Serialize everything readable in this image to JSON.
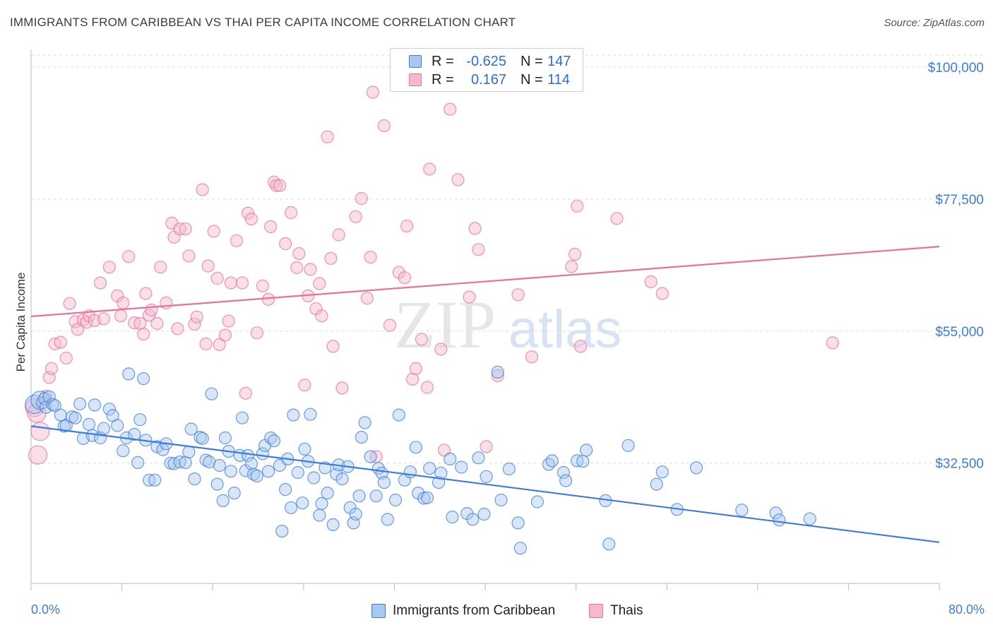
{
  "header": {
    "title": "IMMIGRANTS FROM CARIBBEAN VS THAI PER CAPITA INCOME CORRELATION CHART",
    "source": "Source: ZipAtlas.com"
  },
  "colors": {
    "blue": "#3c7dd9",
    "blue_fill": "#a9c8f0",
    "pink": "#e8709a",
    "pink_fill": "#f5b8cc",
    "grid": "#dddddd"
  },
  "legend": {
    "rows": [
      {
        "r_label": "R =",
        "r_value": "-0.625",
        "n_label": "N =",
        "n_value": "147"
      },
      {
        "r_label": "R =",
        "r_value": "0.167",
        "n_label": "N =",
        "n_value": "114"
      }
    ]
  },
  "bottom_legend": {
    "series_1": "Immigrants from Caribbean",
    "series_2": "Thais"
  },
  "watermark": {
    "part1": "ZIP",
    "part2": "atlas"
  },
  "chart_data": {
    "type": "scatter",
    "title": "IMMIGRANTS FROM CARIBBEAN VS THAI PER CAPITA INCOME CORRELATION CHART",
    "ylabel": "Per Capita Income",
    "xlabel": "",
    "xlim": [
      0,
      80
    ],
    "ylim": [
      12000,
      103000
    ],
    "x_tick_labels": [
      "0.0%",
      "80.0%"
    ],
    "y_ticks": [
      {
        "value": 32500,
        "label": "$32,500"
      },
      {
        "value": 55000,
        "label": "$55,000"
      },
      {
        "value": 77500,
        "label": "$77,500"
      },
      {
        "value": 100000,
        "label": "$100,000"
      }
    ],
    "grid": true,
    "legend_position": "top-center",
    "series": [
      {
        "name": "Immigrants from Caribbean",
        "color": "#3c7dd9",
        "r": -0.625,
        "n": 147,
        "trend": {
          "x": [
            0,
            80
          ],
          "y": [
            38800,
            19000
          ]
        },
        "points": [
          [
            0.3,
            42500
          ],
          [
            0.8,
            43200
          ],
          [
            1.0,
            42800
          ],
          [
            1.2,
            43500
          ],
          [
            1.3,
            42000
          ],
          [
            1.6,
            43800
          ],
          [
            1.9,
            42500
          ],
          [
            2.1,
            42300
          ],
          [
            2.6,
            40700
          ],
          [
            2.9,
            38800
          ],
          [
            3.1,
            38900
          ],
          [
            3.6,
            40400
          ],
          [
            3.9,
            40200
          ],
          [
            4.3,
            42600
          ],
          [
            4.6,
            36700
          ],
          [
            5.1,
            39100
          ],
          [
            5.4,
            37200
          ],
          [
            5.6,
            42400
          ],
          [
            6.1,
            36800
          ],
          [
            6.4,
            38400
          ],
          [
            6.9,
            41700
          ],
          [
            7.2,
            40600
          ],
          [
            7.6,
            38900
          ],
          [
            8.1,
            34600
          ],
          [
            8.4,
            36800
          ],
          [
            8.6,
            47700
          ],
          [
            9.1,
            37400
          ],
          [
            9.4,
            32600
          ],
          [
            9.6,
            39900
          ],
          [
            9.9,
            46900
          ],
          [
            10.1,
            36400
          ],
          [
            10.4,
            29600
          ],
          [
            10.9,
            29600
          ],
          [
            11.1,
            35300
          ],
          [
            11.6,
            34800
          ],
          [
            11.9,
            35800
          ],
          [
            12.3,
            32500
          ],
          [
            12.6,
            32400
          ],
          [
            13.1,
            32700
          ],
          [
            13.6,
            32600
          ],
          [
            13.9,
            34400
          ],
          [
            14.1,
            38300
          ],
          [
            14.4,
            29800
          ],
          [
            14.9,
            36900
          ],
          [
            15.1,
            36700
          ],
          [
            15.4,
            33000
          ],
          [
            15.7,
            32700
          ],
          [
            15.9,
            44300
          ],
          [
            16.4,
            28900
          ],
          [
            16.6,
            32100
          ],
          [
            16.9,
            26100
          ],
          [
            17.1,
            36800
          ],
          [
            17.4,
            34500
          ],
          [
            17.6,
            31100
          ],
          [
            17.9,
            27400
          ],
          [
            18.4,
            33800
          ],
          [
            18.6,
            40200
          ],
          [
            18.9,
            31200
          ],
          [
            19.1,
            33800
          ],
          [
            19.4,
            32400
          ],
          [
            19.6,
            30600
          ],
          [
            19.9,
            30300
          ],
          [
            20.4,
            34100
          ],
          [
            20.6,
            35500
          ],
          [
            20.9,
            31100
          ],
          [
            21.1,
            36800
          ],
          [
            21.4,
            36300
          ],
          [
            21.9,
            32100
          ],
          [
            22.1,
            20900
          ],
          [
            22.4,
            28000
          ],
          [
            22.6,
            33200
          ],
          [
            22.9,
            24900
          ],
          [
            23.1,
            40700
          ],
          [
            23.5,
            30900
          ],
          [
            23.9,
            25700
          ],
          [
            24.1,
            34900
          ],
          [
            24.4,
            32800
          ],
          [
            24.6,
            40800
          ],
          [
            24.9,
            30000
          ],
          [
            25.4,
            23600
          ],
          [
            25.6,
            25600
          ],
          [
            25.9,
            31700
          ],
          [
            26.1,
            27400
          ],
          [
            26.6,
            22000
          ],
          [
            26.9,
            30600
          ],
          [
            27.1,
            32200
          ],
          [
            27.4,
            29800
          ],
          [
            27.9,
            31900
          ],
          [
            28.1,
            24900
          ],
          [
            28.4,
            22300
          ],
          [
            28.6,
            23800
          ],
          [
            28.9,
            26900
          ],
          [
            29.1,
            36900
          ],
          [
            29.4,
            39400
          ],
          [
            29.9,
            33600
          ],
          [
            30.4,
            26900
          ],
          [
            30.6,
            31600
          ],
          [
            30.9,
            30800
          ],
          [
            31.1,
            29200
          ],
          [
            31.4,
            22900
          ],
          [
            32.1,
            26200
          ],
          [
            32.4,
            40700
          ],
          [
            32.9,
            29600
          ],
          [
            33.4,
            31000
          ],
          [
            33.9,
            35200
          ],
          [
            34.1,
            27400
          ],
          [
            34.6,
            26500
          ],
          [
            34.9,
            26600
          ],
          [
            35.1,
            31600
          ],
          [
            35.9,
            29200
          ],
          [
            36.1,
            30800
          ],
          [
            36.9,
            33200
          ],
          [
            37.1,
            23300
          ],
          [
            37.9,
            31800
          ],
          [
            38.4,
            23900
          ],
          [
            38.9,
            22900
          ],
          [
            39.4,
            33400
          ],
          [
            39.9,
            23800
          ],
          [
            40.1,
            30200
          ],
          [
            41.1,
            48000
          ],
          [
            41.4,
            26200
          ],
          [
            42.1,
            31500
          ],
          [
            42.9,
            22300
          ],
          [
            43.1,
            18000
          ],
          [
            44.6,
            25900
          ],
          [
            45.6,
            32300
          ],
          [
            45.9,
            32900
          ],
          [
            46.9,
            30900
          ],
          [
            47.1,
            29500
          ],
          [
            48.1,
            32900
          ],
          [
            48.6,
            32800
          ],
          [
            48.9,
            34700
          ],
          [
            50.6,
            26100
          ],
          [
            50.9,
            18700
          ],
          [
            52.6,
            35500
          ],
          [
            55.1,
            28900
          ],
          [
            55.6,
            31000
          ],
          [
            56.9,
            24600
          ],
          [
            58.6,
            31700
          ],
          [
            62.6,
            24500
          ],
          [
            65.6,
            24000
          ],
          [
            65.9,
            22800
          ],
          [
            68.6,
            23000
          ]
        ]
      },
      {
        "name": "Thais",
        "color": "#e8709a",
        "r": 0.167,
        "n": 114,
        "trend": {
          "x": [
            0,
            80
          ],
          "y": [
            57500,
            69400
          ]
        },
        "points": [
          [
            0.3,
            42000
          ],
          [
            0.5,
            41000
          ],
          [
            0.6,
            33900
          ],
          [
            0.8,
            37900
          ],
          [
            1.3,
            43900
          ],
          [
            1.6,
            47100
          ],
          [
            1.8,
            48600
          ],
          [
            2.1,
            52800
          ],
          [
            2.6,
            53100
          ],
          [
            3.1,
            50400
          ],
          [
            3.4,
            59700
          ],
          [
            3.9,
            56600
          ],
          [
            4.1,
            55300
          ],
          [
            4.6,
            56900
          ],
          [
            4.9,
            56500
          ],
          [
            5.1,
            57600
          ],
          [
            5.6,
            56800
          ],
          [
            6.1,
            63200
          ],
          [
            6.4,
            57100
          ],
          [
            6.9,
            65900
          ],
          [
            7.6,
            61000
          ],
          [
            7.9,
            57600
          ],
          [
            8.1,
            59800
          ],
          [
            8.6,
            67700
          ],
          [
            9.1,
            56400
          ],
          [
            9.6,
            56300
          ],
          [
            9.9,
            54500
          ],
          [
            10.1,
            61400
          ],
          [
            10.4,
            57700
          ],
          [
            10.6,
            58600
          ],
          [
            11.1,
            56300
          ],
          [
            11.4,
            65900
          ],
          [
            11.9,
            59800
          ],
          [
            12.4,
            73400
          ],
          [
            12.6,
            71000
          ],
          [
            12.9,
            55400
          ],
          [
            13.1,
            72400
          ],
          [
            13.6,
            72400
          ],
          [
            13.9,
            67800
          ],
          [
            14.4,
            56200
          ],
          [
            14.6,
            57400
          ],
          [
            15.1,
            79100
          ],
          [
            15.4,
            52800
          ],
          [
            15.6,
            66100
          ],
          [
            16.1,
            72000
          ],
          [
            16.4,
            64000
          ],
          [
            16.6,
            52700
          ],
          [
            17.1,
            54300
          ],
          [
            17.4,
            56700
          ],
          [
            17.6,
            63200
          ],
          [
            18.1,
            70400
          ],
          [
            18.6,
            63200
          ],
          [
            18.9,
            44400
          ],
          [
            19.1,
            75100
          ],
          [
            19.4,
            74100
          ],
          [
            19.9,
            54700
          ],
          [
            20.4,
            62700
          ],
          [
            20.9,
            60400
          ],
          [
            21.1,
            72800
          ],
          [
            21.4,
            80400
          ],
          [
            21.6,
            79800
          ],
          [
            21.9,
            79800
          ],
          [
            22.4,
            69900
          ],
          [
            22.9,
            75200
          ],
          [
            23.4,
            65800
          ],
          [
            23.6,
            68200
          ],
          [
            24.1,
            45800
          ],
          [
            24.4,
            61000
          ],
          [
            24.6,
            65500
          ],
          [
            25.1,
            58800
          ],
          [
            25.4,
            63100
          ],
          [
            25.6,
            57600
          ],
          [
            26.1,
            88100
          ],
          [
            26.4,
            67400
          ],
          [
            26.6,
            52400
          ],
          [
            27.1,
            71400
          ],
          [
            27.4,
            45300
          ],
          [
            28.6,
            74500
          ],
          [
            29.1,
            77600
          ],
          [
            29.6,
            60600
          ],
          [
            29.9,
            67600
          ],
          [
            30.1,
            95700
          ],
          [
            30.4,
            33600
          ],
          [
            31.1,
            90000
          ],
          [
            31.6,
            56000
          ],
          [
            32.4,
            65000
          ],
          [
            32.9,
            64100
          ],
          [
            33.1,
            72900
          ],
          [
            33.6,
            46800
          ],
          [
            33.9,
            48600
          ],
          [
            34.4,
            53600
          ],
          [
            34.9,
            45400
          ],
          [
            35.1,
            82600
          ],
          [
            36.1,
            51900
          ],
          [
            36.4,
            34700
          ],
          [
            36.9,
            92800
          ],
          [
            37.6,
            80800
          ],
          [
            38.6,
            60800
          ],
          [
            39.1,
            72500
          ],
          [
            39.4,
            68900
          ],
          [
            40.1,
            35300
          ],
          [
            41.1,
            47400
          ],
          [
            42.9,
            61200
          ],
          [
            44.1,
            50600
          ],
          [
            47.6,
            66000
          ],
          [
            47.9,
            68100
          ],
          [
            48.1,
            76300
          ],
          [
            48.4,
            52400
          ],
          [
            51.6,
            74200
          ],
          [
            54.6,
            63400
          ],
          [
            55.6,
            61400
          ],
          [
            70.6,
            53000
          ]
        ]
      }
    ]
  }
}
